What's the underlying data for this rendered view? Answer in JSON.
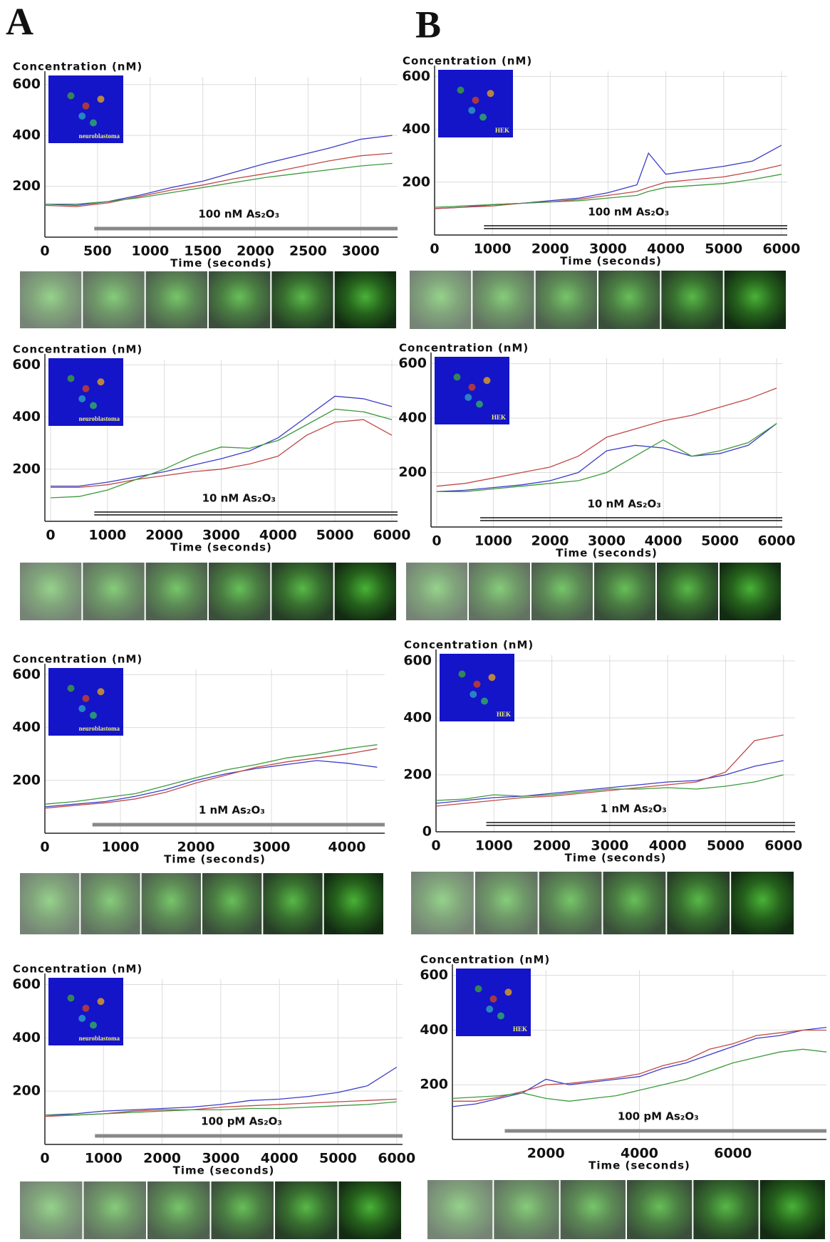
{
  "panel_labels": [
    "A",
    "B"
  ],
  "chart_data": [
    {
      "type": "line",
      "y_label": "Concentration (nM)",
      "x_label": "Time (seconds)",
      "annotation": "100 nM As₂O₃",
      "inset_label": "neuroblastoma",
      "x": [
        0,
        300,
        600,
        900,
        1200,
        1500,
        1800,
        2100,
        2400,
        2700,
        3000,
        3300
      ],
      "xlim": [
        0,
        3350
      ],
      "ylim": [
        0,
        630
      ],
      "xticks": [
        0,
        500,
        1000,
        1500,
        2000,
        2500,
        3000
      ],
      "yticks": [
        200,
        400,
        600
      ],
      "grid": true,
      "series": [
        {
          "color": "#3c3cc8",
          "values": [
            130,
            125,
            140,
            165,
            195,
            220,
            255,
            290,
            320,
            350,
            385,
            400
          ]
        },
        {
          "color": "#c04848",
          "values": [
            125,
            120,
            135,
            160,
            185,
            205,
            230,
            250,
            275,
            300,
            320,
            330
          ]
        },
        {
          "color": "#3c9a3c",
          "values": [
            130,
            130,
            140,
            155,
            175,
            195,
            215,
            235,
            250,
            265,
            280,
            290
          ]
        }
      ]
    },
    {
      "type": "line",
      "y_label": "Concentration (nM)",
      "x_label": "Time (seconds)",
      "annotation": "100 nM As₂O₃",
      "inset_label": "HEK",
      "x": [
        0,
        500,
        1000,
        1500,
        2000,
        2500,
        3000,
        3500,
        3700,
        4000,
        5000,
        5500,
        6000
      ],
      "xlim": [
        0,
        6100
      ],
      "ylim": [
        0,
        620
      ],
      "xticks": [
        0,
        1000,
        2000,
        3000,
        4000,
        5000,
        6000
      ],
      "yticks": [
        200,
        400,
        600
      ],
      "grid": true,
      "series": [
        {
          "color": "#3c3cc8",
          "values": [
            100,
            105,
            115,
            120,
            130,
            140,
            160,
            190,
            310,
            230,
            260,
            280,
            340
          ]
        },
        {
          "color": "#c04848",
          "values": [
            100,
            105,
            110,
            120,
            125,
            135,
            150,
            165,
            180,
            200,
            220,
            240,
            265
          ]
        },
        {
          "color": "#3c9a3c",
          "values": [
            105,
            110,
            115,
            120,
            125,
            130,
            140,
            150,
            165,
            180,
            195,
            210,
            230
          ]
        }
      ]
    },
    {
      "type": "line",
      "y_label": "Concentration (nM)",
      "x_label": "Time (seconds)",
      "annotation": "10 nM As₂O₃",
      "inset_label": "neuroblastoma",
      "x": [
        0,
        500,
        1000,
        1500,
        2000,
        2500,
        3000,
        3500,
        4000,
        4500,
        5000,
        5500,
        6000
      ],
      "xlim": [
        -100,
        6100
      ],
      "ylim": [
        0,
        620
      ],
      "xticks": [
        0,
        1000,
        2000,
        3000,
        4000,
        5000,
        6000
      ],
      "yticks": [
        200,
        400,
        600
      ],
      "grid": true,
      "series": [
        {
          "color": "#3c3cc8",
          "values": [
            135,
            135,
            150,
            170,
            190,
            215,
            240,
            270,
            320,
            400,
            480,
            470,
            440
          ]
        },
        {
          "color": "#c04848",
          "values": [
            130,
            130,
            140,
            160,
            175,
            190,
            200,
            220,
            250,
            330,
            380,
            390,
            330
          ]
        },
        {
          "color": "#3c9a3c",
          "values": [
            90,
            95,
            120,
            160,
            200,
            250,
            285,
            280,
            310,
            370,
            430,
            420,
            390
          ]
        }
      ]
    },
    {
      "type": "line",
      "y_label": "Concentration (nM)",
      "x_label": "Time (seconds)",
      "annotation": "10 nM As₂O₃",
      "inset_label": "HEK",
      "x": [
        0,
        500,
        1000,
        1500,
        2000,
        2500,
        3000,
        3500,
        4000,
        4500,
        5000,
        5500,
        6000
      ],
      "xlim": [
        -100,
        6100
      ],
      "ylim": [
        0,
        620
      ],
      "xticks": [
        0,
        1000,
        2000,
        3000,
        4000,
        5000,
        6000
      ],
      "yticks": [
        200,
        400,
        600
      ],
      "grid": true,
      "series": [
        {
          "color": "#3c3cc8",
          "values": [
            130,
            135,
            145,
            155,
            170,
            200,
            280,
            300,
            290,
            260,
            270,
            300,
            380
          ]
        },
        {
          "color": "#c04848",
          "values": [
            150,
            160,
            180,
            200,
            220,
            260,
            330,
            360,
            390,
            410,
            440,
            470,
            510
          ]
        },
        {
          "color": "#3c9a3c",
          "values": [
            130,
            130,
            140,
            150,
            160,
            170,
            200,
            260,
            320,
            260,
            280,
            310,
            380
          ]
        }
      ]
    },
    {
      "type": "line",
      "y_label": "Concentration (nM)",
      "x_label": "Time (seconds)",
      "annotation": "1 nM As₂O₃",
      "inset_label": "neuroblastoma",
      "x": [
        0,
        400,
        800,
        1200,
        1600,
        2000,
        2400,
        2800,
        3200,
        3600,
        4000,
        4400
      ],
      "xlim": [
        0,
        4500
      ],
      "ylim": [
        0,
        620
      ],
      "xticks": [
        0,
        1000,
        2000,
        3000,
        4000
      ],
      "yticks": [
        200,
        400,
        600
      ],
      "grid": true,
      "series": [
        {
          "color": "#3c3cc8",
          "values": [
            100,
            110,
            120,
            140,
            165,
            200,
            225,
            245,
            260,
            275,
            265,
            250
          ]
        },
        {
          "color": "#c04848",
          "values": [
            95,
            105,
            115,
            130,
            155,
            190,
            220,
            250,
            270,
            285,
            300,
            320
          ]
        },
        {
          "color": "#3c9a3c",
          "values": [
            110,
            120,
            135,
            150,
            180,
            210,
            240,
            260,
            285,
            300,
            320,
            335
          ]
        }
      ]
    },
    {
      "type": "line",
      "y_label": "Concentration (nM)",
      "x_label": "Time (seconds)",
      "annotation": "1 nM As₂O₃",
      "inset_label": "HEK",
      "x": [
        0,
        500,
        1000,
        1500,
        2000,
        2500,
        3000,
        3500,
        4000,
        4500,
        5000,
        5500,
        6000
      ],
      "xlim": [
        0,
        6200
      ],
      "ylim": [
        0,
        620
      ],
      "xticks": [
        0,
        1000,
        2000,
        3000,
        4000,
        5000,
        6000
      ],
      "yticks": [
        0,
        200,
        400,
        600
      ],
      "grid": true,
      "series": [
        {
          "color": "#3c3cc8",
          "values": [
            100,
            110,
            120,
            125,
            135,
            145,
            155,
            165,
            175,
            180,
            200,
            230,
            250
          ]
        },
        {
          "color": "#c04848",
          "values": [
            90,
            100,
            110,
            120,
            125,
            135,
            145,
            155,
            165,
            175,
            210,
            320,
            340
          ]
        },
        {
          "color": "#3c9a3c",
          "values": [
            110,
            115,
            130,
            125,
            130,
            140,
            150,
            150,
            155,
            150,
            160,
            175,
            200
          ]
        }
      ]
    },
    {
      "type": "line",
      "y_label": "Concentration (nM)",
      "x_label": "Time (seconds)",
      "annotation": "100 pM As₂O₃",
      "inset_label": "neuroblastoma",
      "x": [
        0,
        500,
        1000,
        1500,
        2000,
        2500,
        3000,
        3500,
        4000,
        4500,
        5000,
        5500,
        6000
      ],
      "xlim": [
        0,
        6100
      ],
      "ylim": [
        0,
        620
      ],
      "xticks": [
        0,
        1000,
        2000,
        3000,
        4000,
        5000,
        6000
      ],
      "yticks": [
        200,
        400,
        600
      ],
      "grid": true,
      "series": [
        {
          "color": "#3c3cc8",
          "values": [
            110,
            115,
            125,
            130,
            135,
            140,
            150,
            165,
            170,
            180,
            195,
            220,
            290
          ]
        },
        {
          "color": "#c04848",
          "values": [
            105,
            110,
            115,
            125,
            130,
            130,
            140,
            145,
            150,
            155,
            160,
            165,
            170
          ]
        },
        {
          "color": "#3c9a3c",
          "values": [
            110,
            110,
            115,
            120,
            125,
            130,
            130,
            135,
            135,
            140,
            145,
            150,
            160
          ]
        }
      ]
    },
    {
      "type": "line",
      "y_label": "Concentration (nM)",
      "x_label": "Time (seconds)",
      "annotation": "100 pM As₂O₃",
      "inset_label": "HEK",
      "x": [
        0,
        500,
        1000,
        1500,
        2000,
        2500,
        3000,
        3500,
        4000,
        4500,
        5000,
        5500,
        6000,
        6500,
        7000,
        7500,
        8000
      ],
      "xlim": [
        0,
        8000
      ],
      "ylim": [
        0,
        620
      ],
      "xticks": [
        2000,
        4000,
        6000
      ],
      "yticks": [
        200,
        400,
        600
      ],
      "grid": true,
      "series": [
        {
          "color": "#3c3cc8",
          "values": [
            120,
            130,
            150,
            170,
            220,
            200,
            210,
            220,
            230,
            260,
            280,
            310,
            340,
            370,
            380,
            400,
            410
          ]
        },
        {
          "color": "#c04848",
          "values": [
            140,
            140,
            155,
            175,
            200,
            205,
            215,
            225,
            240,
            270,
            290,
            330,
            350,
            380,
            390,
            400,
            400
          ]
        },
        {
          "color": "#3c9a3c",
          "values": [
            150,
            155,
            160,
            170,
            150,
            140,
            150,
            160,
            180,
            200,
            220,
            250,
            280,
            300,
            320,
            330,
            320
          ]
        }
      ]
    }
  ]
}
